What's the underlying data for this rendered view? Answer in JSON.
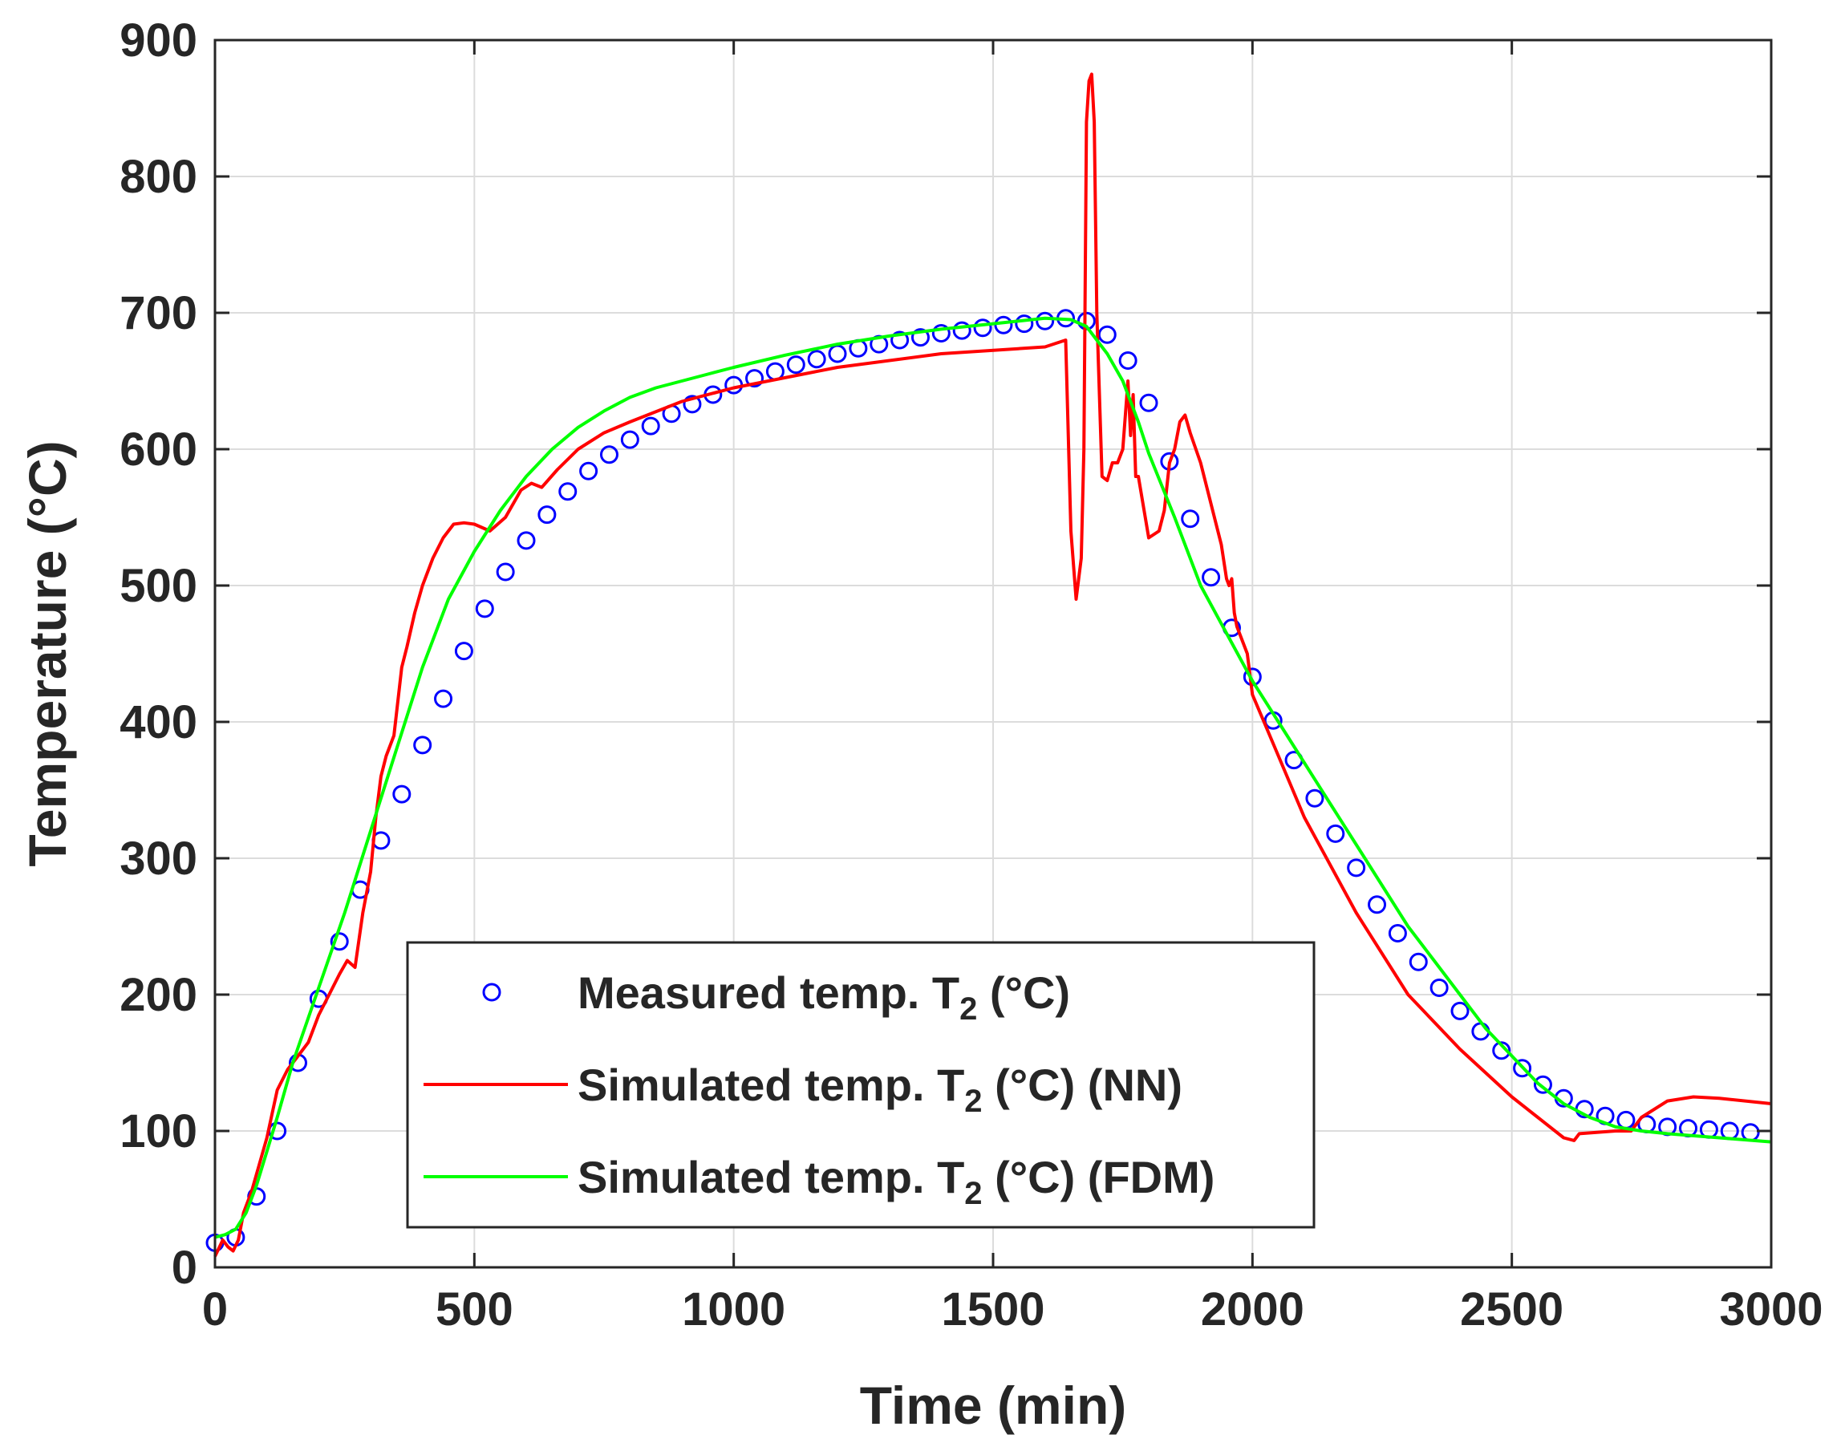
{
  "chart_data": {
    "type": "line",
    "title": "",
    "xlabel": "Time (min)",
    "ylabel": "Temperature (°C)",
    "xlim": [
      0,
      3000
    ],
    "ylim": [
      0,
      900
    ],
    "xticks": [
      0,
      500,
      1000,
      1500,
      2000,
      2500,
      3000
    ],
    "yticks": [
      0,
      100,
      200,
      300,
      400,
      500,
      600,
      700,
      800,
      900
    ],
    "grid": true,
    "legend_position": "bottom-center",
    "legend_subscript": "2",
    "series": [
      {
        "name": "Measured temp. T2 (°C)",
        "legend_before": "Measured temp. T",
        "legend_after": " (°C)",
        "kind": "markers",
        "marker": "circle",
        "color": "#0000ff",
        "x": [
          0,
          40,
          80,
          120,
          160,
          200,
          240,
          280,
          320,
          360,
          400,
          440,
          480,
          520,
          560,
          600,
          640,
          680,
          720,
          760,
          800,
          840,
          880,
          920,
          960,
          1000,
          1040,
          1080,
          1120,
          1160,
          1200,
          1240,
          1280,
          1320,
          1360,
          1400,
          1440,
          1480,
          1520,
          1560,
          1600,
          1640,
          1680,
          1720,
          1760,
          1800,
          1840,
          1880,
          1920,
          1960,
          2000,
          2040,
          2080,
          2120,
          2160,
          2200,
          2240,
          2280,
          2320,
          2360,
          2400,
          2440,
          2480,
          2520,
          2560,
          2600,
          2640,
          2680,
          2720,
          2760,
          2800,
          2840,
          2880,
          2920,
          2960
        ],
        "y": [
          18,
          22,
          52,
          100,
          150,
          197,
          239,
          277,
          313,
          347,
          383,
          417,
          452,
          483,
          510,
          533,
          552,
          569,
          584,
          596,
          607,
          617,
          626,
          633,
          640,
          647,
          652,
          657,
          662,
          666,
          670,
          674,
          677,
          680,
          682,
          685,
          687,
          689,
          691,
          692,
          694,
          696,
          694,
          684,
          665,
          634,
          591,
          549,
          506,
          469,
          433,
          401,
          372,
          344,
          318,
          293,
          266,
          245,
          224,
          205,
          188,
          173,
          159,
          146,
          134,
          124,
          116,
          111,
          108,
          105,
          103,
          102,
          101,
          100,
          99
        ]
      },
      {
        "name": "Simulated temp. T2 (°C) (NN)",
        "legend_before": "Simulated temp. T",
        "legend_after": " (°C) (NN)",
        "kind": "line",
        "color": "#ff0000",
        "x": [
          0,
          15,
          25,
          35,
          45,
          55,
          70,
          85,
          100,
          120,
          140,
          160,
          180,
          200,
          220,
          240,
          255,
          270,
          285,
          300,
          310,
          320,
          330,
          345,
          360,
          370,
          385,
          400,
          420,
          440,
          460,
          480,
          500,
          530,
          560,
          590,
          610,
          630,
          660,
          700,
          750,
          800,
          900,
          1000,
          1200,
          1400,
          1600,
          1640,
          1650,
          1660,
          1670,
          1675,
          1680,
          1685,
          1690,
          1695,
          1700,
          1710,
          1720,
          1730,
          1740,
          1750,
          1760,
          1765,
          1770,
          1775,
          1780,
          1800,
          1820,
          1830,
          1840,
          1850,
          1860,
          1870,
          1880,
          1900,
          1920,
          1940,
          1950,
          1955,
          1960,
          1965,
          1970,
          1990,
          2000,
          2050,
          2100,
          2200,
          2300,
          2400,
          2500,
          2550,
          2600,
          2620,
          2630,
          2700,
          2730,
          2750,
          2800,
          2850,
          2900,
          3000
        ],
        "y": [
          8,
          20,
          15,
          12,
          20,
          40,
          55,
          75,
          95,
          130,
          145,
          155,
          165,
          185,
          200,
          215,
          225,
          220,
          260,
          290,
          330,
          360,
          375,
          390,
          440,
          455,
          480,
          500,
          520,
          535,
          545,
          546,
          545,
          540,
          550,
          570,
          575,
          572,
          585,
          600,
          612,
          620,
          635,
          645,
          660,
          670,
          675,
          680,
          540,
          490,
          520,
          600,
          840,
          870,
          875,
          840,
          700,
          580,
          577,
          590,
          590,
          600,
          650,
          610,
          640,
          580,
          580,
          535,
          540,
          555,
          590,
          600,
          620,
          625,
          612,
          590,
          560,
          530,
          505,
          500,
          505,
          480,
          470,
          450,
          420,
          375,
          330,
          260,
          200,
          160,
          125,
          110,
          95,
          93,
          98,
          100,
          100,
          110,
          122,
          125,
          124,
          120
        ]
      },
      {
        "name": "Simulated temp. T2 (°C) (FDM)",
        "legend_before": "Simulated temp. T",
        "legend_after": " (°C) (FDM)",
        "kind": "line",
        "color": "#00ff00",
        "x": [
          0,
          20,
          40,
          60,
          80,
          100,
          120,
          150,
          200,
          250,
          300,
          350,
          400,
          450,
          500,
          550,
          600,
          650,
          700,
          750,
          800,
          850,
          900,
          950,
          1000,
          1100,
          1200,
          1300,
          1400,
          1500,
          1600,
          1650,
          1680,
          1700,
          1720,
          1750,
          1780,
          1800,
          1850,
          1900,
          1950,
          2000,
          2050,
          2100,
          2150,
          2200,
          2250,
          2300,
          2350,
          2400,
          2450,
          2500,
          2550,
          2600,
          2650,
          2700,
          2750,
          2800,
          2900,
          3000
        ],
        "y": [
          22,
          24,
          28,
          40,
          60,
          85,
          110,
          150,
          205,
          260,
          320,
          380,
          440,
          490,
          525,
          555,
          580,
          600,
          616,
          628,
          638,
          645,
          650,
          655,
          660,
          669,
          677,
          683,
          688,
          692,
          696,
          695,
          690,
          680,
          670,
          650,
          620,
          597,
          550,
          500,
          465,
          430,
          400,
          370,
          340,
          310,
          280,
          250,
          225,
          200,
          175,
          155,
          135,
          120,
          110,
          103,
          100,
          98,
          95,
          92
        ]
      }
    ]
  }
}
